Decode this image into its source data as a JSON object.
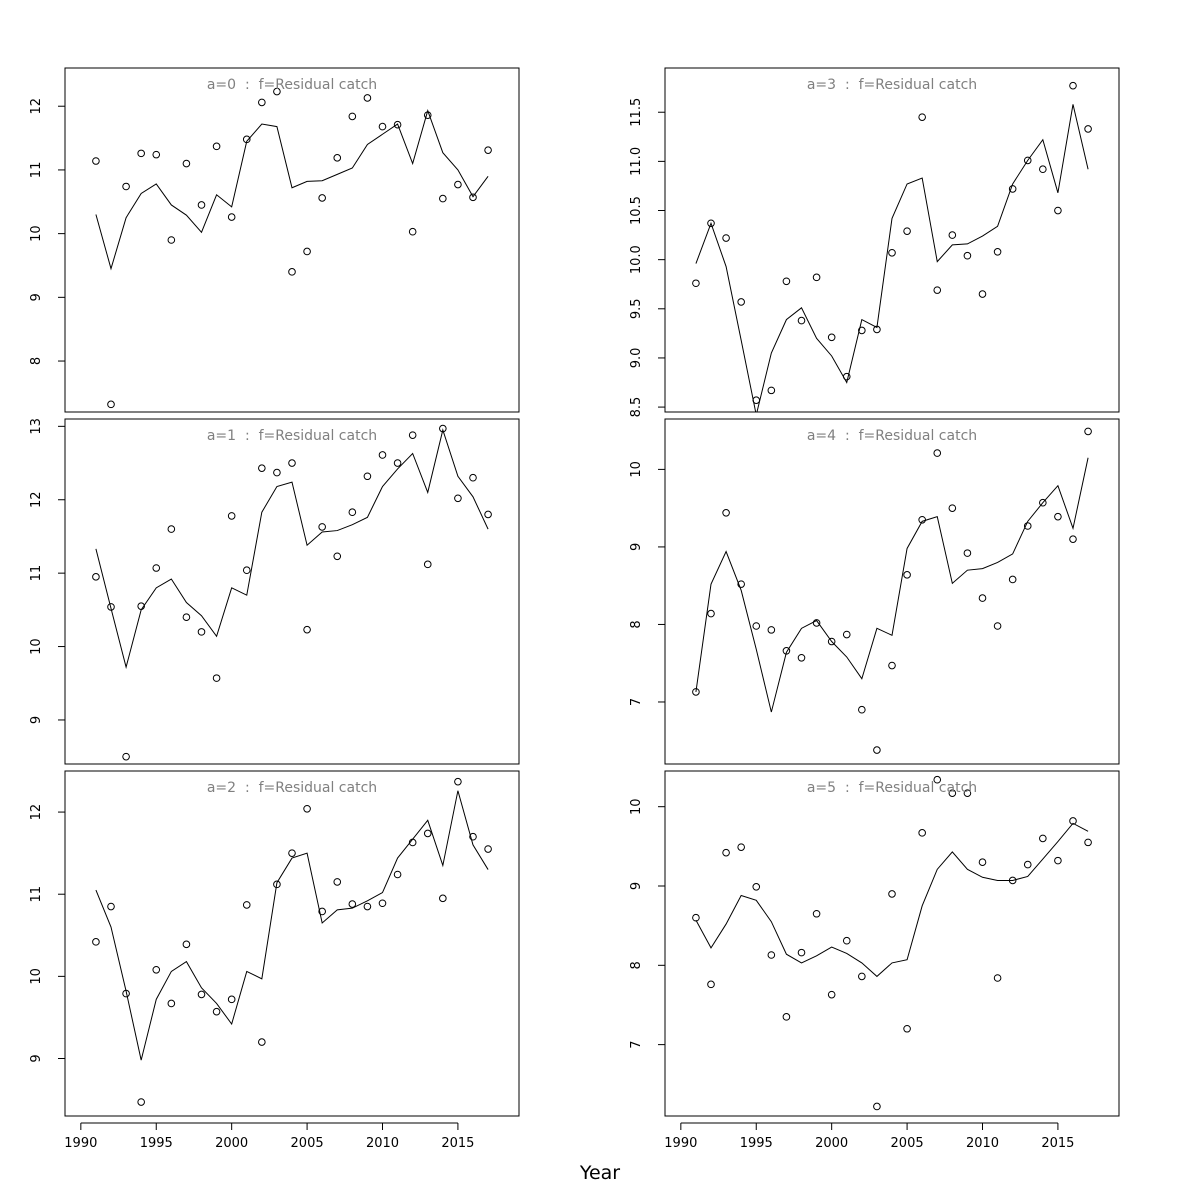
{
  "chart_data": {
    "type": "line",
    "xlabel": "Year",
    "x_ticks": [
      1990,
      1995,
      2000,
      2005,
      2010,
      2015
    ],
    "legend": "none",
    "grid": false,
    "years": [
      1991,
      1992,
      1993,
      1994,
      1995,
      1996,
      1997,
      1998,
      1999,
      2000,
      2001,
      2002,
      2003,
      2004,
      2005,
      2006,
      2007,
      2008,
      2009,
      2010,
      2011,
      2012,
      2013,
      2014,
      2015,
      2016,
      2017
    ],
    "panels": [
      {
        "title": "a=0  :  f=Residual catch",
        "ylim": [
          7.2,
          12.6
        ],
        "y_ticks": [
          "8",
          "9",
          "10",
          "11",
          "12"
        ],
        "fitted": [
          10.3,
          9.45,
          10.25,
          10.63,
          10.78,
          10.45,
          10.29,
          10.02,
          10.61,
          10.42,
          11.45,
          11.72,
          11.68,
          10.72,
          10.82,
          10.83,
          10.93,
          11.03,
          11.4,
          11.56,
          11.72,
          11.1,
          11.93,
          11.27,
          11.0,
          10.58,
          10.9
        ],
        "observed": [
          11.14,
          7.32,
          10.74,
          11.26,
          11.24,
          9.9,
          11.1,
          10.45,
          11.37,
          10.26,
          11.48,
          12.06,
          12.23,
          9.4,
          9.72,
          10.56,
          11.19,
          11.84,
          12.13,
          11.68,
          11.71,
          10.03,
          11.86,
          10.55,
          10.77,
          10.57,
          11.31
        ]
      },
      {
        "title": "a=1  :  f=Residual catch",
        "ylim": [
          8.4,
          13.1
        ],
        "y_ticks": [
          "9",
          "10",
          "11",
          "12",
          "13"
        ],
        "fitted": [
          11.33,
          10.52,
          9.72,
          10.5,
          10.8,
          10.92,
          10.6,
          10.42,
          10.14,
          10.8,
          10.7,
          11.83,
          12.18,
          12.24,
          11.38,
          11.56,
          11.58,
          11.66,
          11.76,
          12.18,
          12.42,
          12.63,
          12.1,
          12.95,
          12.32,
          12.04,
          11.6
        ],
        "observed": [
          10.95,
          10.54,
          8.5,
          10.55,
          11.07,
          11.6,
          10.4,
          10.2,
          9.57,
          11.78,
          11.04,
          12.43,
          12.37,
          12.5,
          10.23,
          11.63,
          11.23,
          11.83,
          12.32,
          12.61,
          12.5,
          12.88,
          11.12,
          12.97,
          12.02,
          12.3,
          11.8
        ]
      },
      {
        "title": "a=2  :  f=Residual catch",
        "ylim": [
          8.3,
          12.5
        ],
        "y_ticks": [
          "9",
          "10",
          "11",
          "12"
        ],
        "fitted": [
          11.05,
          10.6,
          9.82,
          8.98,
          9.72,
          10.06,
          10.18,
          9.86,
          9.67,
          9.42,
          10.06,
          9.97,
          11.14,
          11.44,
          11.5,
          10.65,
          10.81,
          10.83,
          10.92,
          11.02,
          11.44,
          11.67,
          11.9,
          11.35,
          12.26,
          11.6,
          11.3
        ],
        "observed": [
          10.42,
          10.85,
          9.79,
          8.47,
          10.08,
          9.67,
          10.39,
          9.78,
          9.57,
          9.72,
          10.87,
          9.2,
          11.12,
          11.5,
          12.04,
          10.79,
          11.15,
          10.88,
          10.85,
          10.89,
          11.24,
          11.63,
          11.74,
          10.95,
          12.37,
          11.7,
          11.55
        ]
      },
      {
        "title": "a=3  :  f=Residual catch",
        "ylim": [
          8.45,
          11.95
        ],
        "y_ticks": [
          "8.5",
          "9.0",
          "9.5",
          "10.0",
          "10.5",
          "11.0",
          "11.5"
        ],
        "fitted": [
          9.96,
          10.37,
          9.93,
          9.18,
          8.42,
          9.05,
          9.39,
          9.51,
          9.2,
          9.02,
          8.75,
          9.39,
          9.31,
          10.42,
          10.77,
          10.83,
          9.98,
          10.15,
          10.16,
          10.24,
          10.34,
          10.77,
          11.01,
          11.22,
          10.68,
          11.58,
          10.92
        ],
        "observed": [
          9.76,
          10.37,
          10.22,
          9.57,
          8.57,
          8.67,
          9.78,
          9.38,
          9.82,
          9.21,
          8.81,
          9.28,
          9.29,
          10.07,
          10.29,
          11.45,
          9.69,
          10.25,
          10.04,
          9.65,
          10.08,
          10.72,
          11.01,
          10.92,
          10.5,
          11.77,
          11.33
        ]
      },
      {
        "title": "a=4  :  f=Residual catch",
        "ylim": [
          6.2,
          10.65
        ],
        "y_ticks": [
          "7",
          "8",
          "9",
          "10"
        ],
        "fitted": [
          7.13,
          8.52,
          8.94,
          8.44,
          7.68,
          6.87,
          7.64,
          7.95,
          8.05,
          7.78,
          7.58,
          7.3,
          7.95,
          7.86,
          8.98,
          9.33,
          9.39,
          8.53,
          8.7,
          8.72,
          8.8,
          8.91,
          9.33,
          9.57,
          9.79,
          9.24,
          10.15
        ],
        "observed": [
          7.13,
          8.14,
          9.44,
          8.52,
          7.98,
          7.93,
          7.66,
          7.57,
          8.02,
          7.78,
          7.87,
          6.9,
          6.38,
          7.47,
          8.64,
          9.35,
          10.21,
          9.5,
          8.92,
          8.34,
          7.98,
          8.58,
          9.27,
          9.57,
          9.39,
          9.1,
          10.49
        ]
      },
      {
        "title": "a=5  :  f=Residual catch",
        "ylim": [
          6.1,
          10.45
        ],
        "y_ticks": [
          "7",
          "8",
          "9",
          "10"
        ],
        "fitted": [
          8.57,
          8.22,
          8.52,
          8.88,
          8.82,
          8.55,
          8.14,
          8.03,
          8.12,
          8.23,
          8.15,
          8.03,
          7.86,
          8.03,
          8.07,
          8.75,
          9.21,
          9.43,
          9.21,
          9.11,
          9.07,
          9.07,
          9.12,
          9.34,
          9.56,
          9.79,
          9.69
        ],
        "observed": [
          8.6,
          7.76,
          9.42,
          9.49,
          8.99,
          8.13,
          7.35,
          8.16,
          8.65,
          7.63,
          8.31,
          7.86,
          6.22,
          8.9,
          7.2,
          9.67,
          10.34,
          10.17,
          10.17,
          9.3,
          7.84,
          9.07,
          9.27,
          9.6,
          9.32,
          9.82,
          9.55
        ]
      }
    ]
  }
}
